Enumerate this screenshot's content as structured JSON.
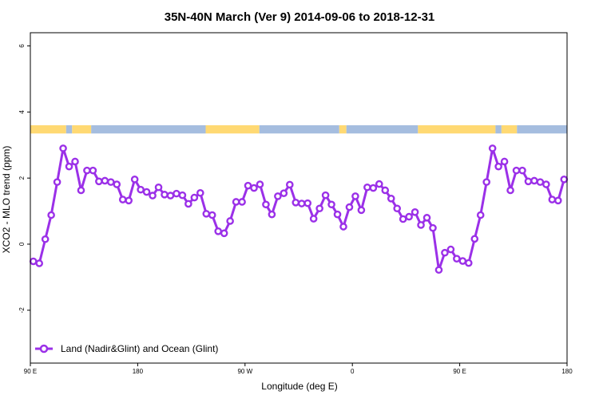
{
  "chart_data": {
    "type": "line",
    "title": "35N-40N March (Ver 9)   2014-09-06 to 2018-12-31",
    "xlabel": "Longitude (deg E)",
    "ylabel": "XCO2 - MLO trend (ppm)",
    "xlim": [
      90,
      540
    ],
    "ylim": [
      -3.6,
      6.4
    ],
    "x_ticks": [
      {
        "value": 90,
        "label": "90 E"
      },
      {
        "value": 180,
        "label": "180"
      },
      {
        "value": 270,
        "label": "90 W"
      },
      {
        "value": 360,
        "label": "0"
      },
      {
        "value": 450,
        "label": "90 E"
      },
      {
        "value": 540,
        "label": "180"
      }
    ],
    "y_ticks": [
      {
        "value": -2,
        "label": "-2"
      },
      {
        "value": 0,
        "label": "0"
      },
      {
        "value": 2,
        "label": "2"
      },
      {
        "value": 4,
        "label": "4"
      },
      {
        "value": 6,
        "label": "6"
      }
    ],
    "grid": false,
    "legend_position": "bottom-left",
    "colors": {
      "series": "#9b30e8",
      "land": "#ffd973",
      "ocean": "#a5bddf"
    },
    "surface_strip": {
      "y_range": [
        3.35,
        3.6
      ],
      "segments": [
        {
          "type": "land",
          "x": [
            90,
            120
          ]
        },
        {
          "type": "ocean",
          "x": [
            120,
            125
          ]
        },
        {
          "type": "land",
          "x": [
            125,
            141
          ]
        },
        {
          "type": "ocean",
          "x": [
            141,
            237
          ]
        },
        {
          "type": "land",
          "x": [
            237,
            282
          ]
        },
        {
          "type": "ocean",
          "x": [
            282,
            349
          ]
        },
        {
          "type": "land",
          "x": [
            349,
            355
          ]
        },
        {
          "type": "ocean",
          "x": [
            355,
            415
          ]
        },
        {
          "type": "land",
          "x": [
            415,
            480
          ]
        },
        {
          "type": "ocean",
          "x": [
            480,
            485
          ]
        },
        {
          "type": "land",
          "x": [
            485,
            498
          ]
        },
        {
          "type": "ocean",
          "x": [
            498,
            540
          ]
        }
      ]
    },
    "series": [
      {
        "name": "Land (Nadir&Glint) and Ocean (Glint)",
        "x": [
          92.5,
          97.5,
          102.5,
          107.5,
          112.5,
          117.5,
          122.5,
          127.5,
          132.5,
          137.5,
          142.5,
          147.5,
          152.5,
          157.5,
          162.5,
          167.5,
          172.5,
          177.5,
          182.5,
          187.5,
          192.5,
          197.5,
          202.5,
          207.5,
          212.5,
          217.5,
          222.5,
          227.5,
          232.5,
          237.5,
          242.5,
          247.5,
          252.5,
          257.5,
          262.5,
          267.5,
          272.5,
          277.5,
          282.5,
          287.5,
          292.5,
          297.5,
          302.5,
          307.5,
          312.5,
          317.5,
          322.5,
          327.5,
          332.5,
          337.5,
          342.5,
          347.5,
          352.5,
          357.5,
          362.5,
          367.5,
          372.5,
          377.5,
          382.5,
          387.5,
          392.5,
          397.5,
          402.5,
          407.5,
          412.5,
          417.5,
          422.5,
          427.5,
          432.5,
          437.5,
          442.5,
          447.5,
          452.5,
          457.5,
          462.5,
          467.5,
          472.5,
          477.5,
          482.5,
          487.5,
          492.5,
          497.5,
          502.5,
          507.5,
          512.5,
          517.5,
          522.5,
          527.5,
          532.5,
          537.5
        ],
        "y": [
          -0.52,
          -0.58,
          0.15,
          0.88,
          1.88,
          2.9,
          2.35,
          2.5,
          1.63,
          2.23,
          2.23,
          1.9,
          1.92,
          1.88,
          1.81,
          1.35,
          1.32,
          1.96,
          1.65,
          1.58,
          1.47,
          1.72,
          1.5,
          1.47,
          1.53,
          1.48,
          1.22,
          1.41,
          1.55,
          0.92,
          0.88,
          0.39,
          0.33,
          0.7,
          1.28,
          1.28,
          1.77,
          1.7,
          1.81,
          1.2,
          0.9,
          1.45,
          1.54,
          1.8,
          1.26,
          1.23,
          1.24,
          0.77,
          1.08,
          1.48,
          1.2,
          0.9,
          0.53,
          1.12,
          1.45,
          1.03,
          1.72,
          1.7,
          1.82,
          1.63,
          1.38,
          1.08,
          0.76,
          0.83,
          0.97,
          0.58,
          0.8,
          0.49,
          -0.78,
          -0.26,
          -0.16,
          -0.44,
          -0.51,
          -0.57,
          0.16,
          0.88,
          1.88,
          2.9,
          2.35,
          2.5,
          1.63,
          2.23,
          2.23,
          1.9,
          1.92,
          1.88,
          1.81,
          1.35,
          1.32,
          1.96
        ]
      }
    ]
  }
}
